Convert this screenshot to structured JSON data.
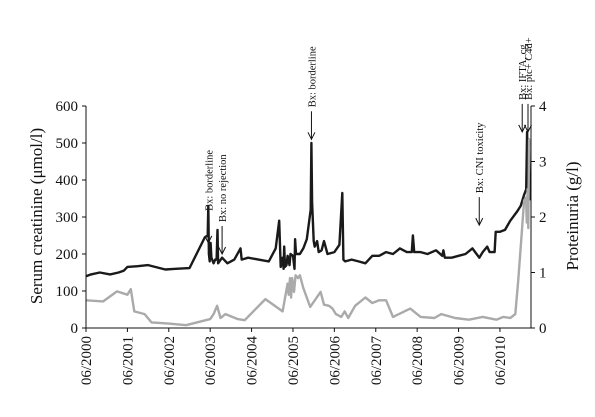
{
  "chart_data": {
    "type": "line",
    "xlabel": "",
    "ylabel": "Serum creatinine (μmol/l)",
    "y2label": "Proteinuria (g/l)",
    "xlim": [
      "2000-06-01",
      "2011-03-01"
    ],
    "ylim": [
      0,
      600
    ],
    "y2lim": [
      0,
      4
    ],
    "x_tick_labels": [
      "06/2000",
      "06/2001",
      "06/2002",
      "06/2003",
      "06/2004",
      "06/2005",
      "06/2006",
      "06/2007",
      "06/2008",
      "06/2009",
      "06/2010"
    ],
    "y_tick_labels": [
      "0",
      "100",
      "200",
      "300",
      "400",
      "500",
      "600"
    ],
    "y2_tick_labels": [
      "0",
      "1",
      "2",
      "3",
      "4"
    ],
    "grid": false,
    "series": [
      {
        "key": "creatinine",
        "axis": "left",
        "color": "#1a1a1a",
        "points": [
          [
            "2000-06-01",
            140
          ],
          [
            "2000-07-15",
            145
          ],
          [
            "2000-10-01",
            150
          ],
          [
            "2001-01-01",
            145
          ],
          [
            "2001-03-15",
            150
          ],
          [
            "2001-05-01",
            155
          ],
          [
            "2001-06-01",
            165
          ],
          [
            "2001-09-01",
            167
          ],
          [
            "2001-12-01",
            170
          ],
          [
            "2002-02-01",
            165
          ],
          [
            "2002-05-01",
            158
          ],
          [
            "2002-08-01",
            160
          ],
          [
            "2002-12-01",
            162
          ],
          [
            "2003-04-15",
            245
          ],
          [
            "2003-05-10",
            250
          ],
          [
            "2003-05-15",
            330
          ],
          [
            "2003-05-20",
            200
          ],
          [
            "2003-05-28",
            180
          ],
          [
            "2003-06-05",
            230
          ],
          [
            "2003-06-12",
            190
          ],
          [
            "2003-07-01",
            175
          ],
          [
            "2003-07-15",
            185
          ],
          [
            "2003-07-28",
            185
          ],
          [
            "2003-08-05",
            265
          ],
          [
            "2003-08-10",
            175
          ],
          [
            "2003-09-15",
            190
          ],
          [
            "2003-11-01",
            175
          ],
          [
            "2004-01-01",
            185
          ],
          [
            "2004-02-25",
            215
          ],
          [
            "2004-03-05",
            185
          ],
          [
            "2004-05-01",
            190
          ],
          [
            "2004-08-01",
            185
          ],
          [
            "2004-11-01",
            180
          ],
          [
            "2005-01-01",
            215
          ],
          [
            "2005-02-01",
            290
          ],
          [
            "2005-02-15",
            165
          ],
          [
            "2005-03-01",
            190
          ],
          [
            "2005-03-10",
            160
          ],
          [
            "2005-03-15",
            220
          ],
          [
            "2005-03-22",
            165
          ],
          [
            "2005-04-05",
            170
          ],
          [
            "2005-04-15",
            195
          ],
          [
            "2005-05-01",
            170
          ],
          [
            "2005-05-10",
            200
          ],
          [
            "2005-06-01",
            195
          ],
          [
            "2005-06-15",
            160
          ],
          [
            "2005-06-20",
            240
          ],
          [
            "2005-06-28",
            200
          ],
          [
            "2005-07-10",
            200
          ],
          [
            "2005-08-01",
            200
          ],
          [
            "2005-09-01",
            215
          ],
          [
            "2005-10-01",
            240
          ],
          [
            "2005-11-05",
            320
          ],
          [
            "2005-11-12",
            500
          ],
          [
            "2005-11-18",
            340
          ],
          [
            "2005-12-01",
            235
          ],
          [
            "2005-12-10",
            220
          ],
          [
            "2006-01-01",
            235
          ],
          [
            "2006-01-15",
            205
          ],
          [
            "2006-02-10",
            210
          ],
          [
            "2006-03-01",
            235
          ],
          [
            "2006-04-01",
            200
          ],
          [
            "2006-06-01",
            205
          ],
          [
            "2006-07-15",
            225
          ],
          [
            "2006-08-10",
            365
          ],
          [
            "2006-08-20",
            185
          ],
          [
            "2006-09-05",
            180
          ],
          [
            "2006-11-01",
            185
          ],
          [
            "2007-01-01",
            180
          ],
          [
            "2007-03-01",
            175
          ],
          [
            "2007-05-01",
            195
          ],
          [
            "2007-07-01",
            195
          ],
          [
            "2007-09-01",
            205
          ],
          [
            "2007-11-01",
            200
          ],
          [
            "2008-01-01",
            215
          ],
          [
            "2008-03-01",
            205
          ],
          [
            "2008-04-15",
            205
          ],
          [
            "2008-04-25",
            250
          ],
          [
            "2008-05-05",
            205
          ],
          [
            "2008-07-01",
            205
          ],
          [
            "2008-09-01",
            200
          ],
          [
            "2008-11-15",
            210
          ],
          [
            "2009-01-10",
            195
          ],
          [
            "2009-01-20",
            210
          ],
          [
            "2009-02-01",
            190
          ],
          [
            "2009-04-01",
            190
          ],
          [
            "2009-06-01",
            195
          ],
          [
            "2009-08-01",
            200
          ],
          [
            "2009-10-01",
            215
          ],
          [
            "2009-12-01",
            190
          ],
          [
            "2010-01-01",
            205
          ],
          [
            "2010-02-10",
            220
          ],
          [
            "2010-03-01",
            205
          ],
          [
            "2010-04-15",
            205
          ],
          [
            "2010-04-25",
            260
          ],
          [
            "2010-06-01",
            260
          ],
          [
            "2010-07-15",
            265
          ],
          [
            "2010-09-01",
            290
          ],
          [
            "2010-11-01",
            315
          ],
          [
            "2010-12-01",
            330
          ],
          [
            "2011-01-01",
            360
          ],
          [
            "2011-01-20",
            375
          ],
          [
            "2011-01-28",
            530
          ],
          [
            "2011-02-05",
            395
          ],
          [
            "2011-02-12",
            510
          ],
          [
            "2011-02-20",
            345
          ]
        ]
      },
      {
        "key": "proteinuria",
        "axis": "right",
        "color": "#aaaaaa",
        "points": [
          [
            "2000-06-01",
            0.5
          ],
          [
            "2000-11-01",
            0.48
          ],
          [
            "2001-03-01",
            0.66
          ],
          [
            "2001-06-01",
            0.6
          ],
          [
            "2001-07-01",
            0.7
          ],
          [
            "2001-08-01",
            0.3
          ],
          [
            "2001-11-01",
            0.25
          ],
          [
            "2002-01-01",
            0.1
          ],
          [
            "2002-06-01",
            0.08
          ],
          [
            "2002-11-01",
            0.05
          ],
          [
            "2003-06-01",
            0.16
          ],
          [
            "2003-07-01",
            0.25
          ],
          [
            "2003-08-01",
            0.4
          ],
          [
            "2003-09-01",
            0.18
          ],
          [
            "2003-10-15",
            0.25
          ],
          [
            "2004-02-01",
            0.16
          ],
          [
            "2004-04-01",
            0.14
          ],
          [
            "2004-10-01",
            0.52
          ],
          [
            "2005-03-01",
            0.3
          ],
          [
            "2005-04-15",
            0.8
          ],
          [
            "2005-04-25",
            0.6
          ],
          [
            "2005-05-05",
            0.9
          ],
          [
            "2005-05-15",
            0.55
          ],
          [
            "2005-05-25",
            0.9
          ],
          [
            "2005-06-10",
            0.65
          ],
          [
            "2005-06-25",
            0.95
          ],
          [
            "2005-07-15",
            0.9
          ],
          [
            "2005-08-01",
            0.95
          ],
          [
            "2005-09-01",
            0.72
          ],
          [
            "2005-11-01",
            0.38
          ],
          [
            "2006-02-01",
            0.65
          ],
          [
            "2006-03-01",
            0.42
          ],
          [
            "2006-04-15",
            0.4
          ],
          [
            "2006-05-15",
            0.35
          ],
          [
            "2006-06-15",
            0.25
          ],
          [
            "2006-08-01",
            0.2
          ],
          [
            "2006-09-01",
            0.3
          ],
          [
            "2006-10-01",
            0.18
          ],
          [
            "2006-12-01",
            0.4
          ],
          [
            "2007-03-01",
            0.55
          ],
          [
            "2007-05-01",
            0.45
          ],
          [
            "2007-07-01",
            0.5
          ],
          [
            "2007-09-01",
            0.5
          ],
          [
            "2007-11-01",
            0.2
          ],
          [
            "2008-04-01",
            0.35
          ],
          [
            "2008-07-01",
            0.2
          ],
          [
            "2008-11-01",
            0.18
          ],
          [
            "2009-01-01",
            0.25
          ],
          [
            "2009-05-01",
            0.18
          ],
          [
            "2009-09-01",
            0.15
          ],
          [
            "2010-01-01",
            0.2
          ],
          [
            "2010-05-01",
            0.15
          ],
          [
            "2010-07-01",
            0.2
          ],
          [
            "2010-09-01",
            0.18
          ],
          [
            "2010-10-15",
            0.25
          ],
          [
            "2010-11-10",
            0.85
          ],
          [
            "2010-12-10",
            1.7
          ],
          [
            "2011-01-01",
            2.3
          ],
          [
            "2011-01-18",
            2.35
          ],
          [
            "2011-01-25",
            1.9
          ],
          [
            "2011-02-01",
            2.5
          ],
          [
            "2011-02-08",
            1.8
          ],
          [
            "2011-02-15",
            3.4
          ],
          [
            "2011-02-22",
            3.3
          ]
        ]
      }
    ],
    "annotations": [
      {
        "lines": [
          "Bx: borderline"
        ],
        "date": "2003-05-15",
        "arrow_tip_value": 230
      },
      {
        "lines": [
          "Bx: no rejection"
        ],
        "date": "2003-09-15",
        "arrow_tip_value": 200
      },
      {
        "lines": [
          "Bx: borderline"
        ],
        "date": "2005-11-12",
        "arrow_tip_value": 510
      },
      {
        "lines": [
          "Bx: CNI toxicity"
        ],
        "date": "2009-12-01",
        "arrow_tip_value": 278
      },
      {
        "lines": [
          "Bx: IFTA, cg"
        ],
        "date": "2010-12-15",
        "arrow_tip_value": 530
      },
      {
        "lines": [
          "Bx: ptc+ C4d+"
        ],
        "date": "2011-02-05",
        "arrow_tip_value": 530
      }
    ]
  }
}
